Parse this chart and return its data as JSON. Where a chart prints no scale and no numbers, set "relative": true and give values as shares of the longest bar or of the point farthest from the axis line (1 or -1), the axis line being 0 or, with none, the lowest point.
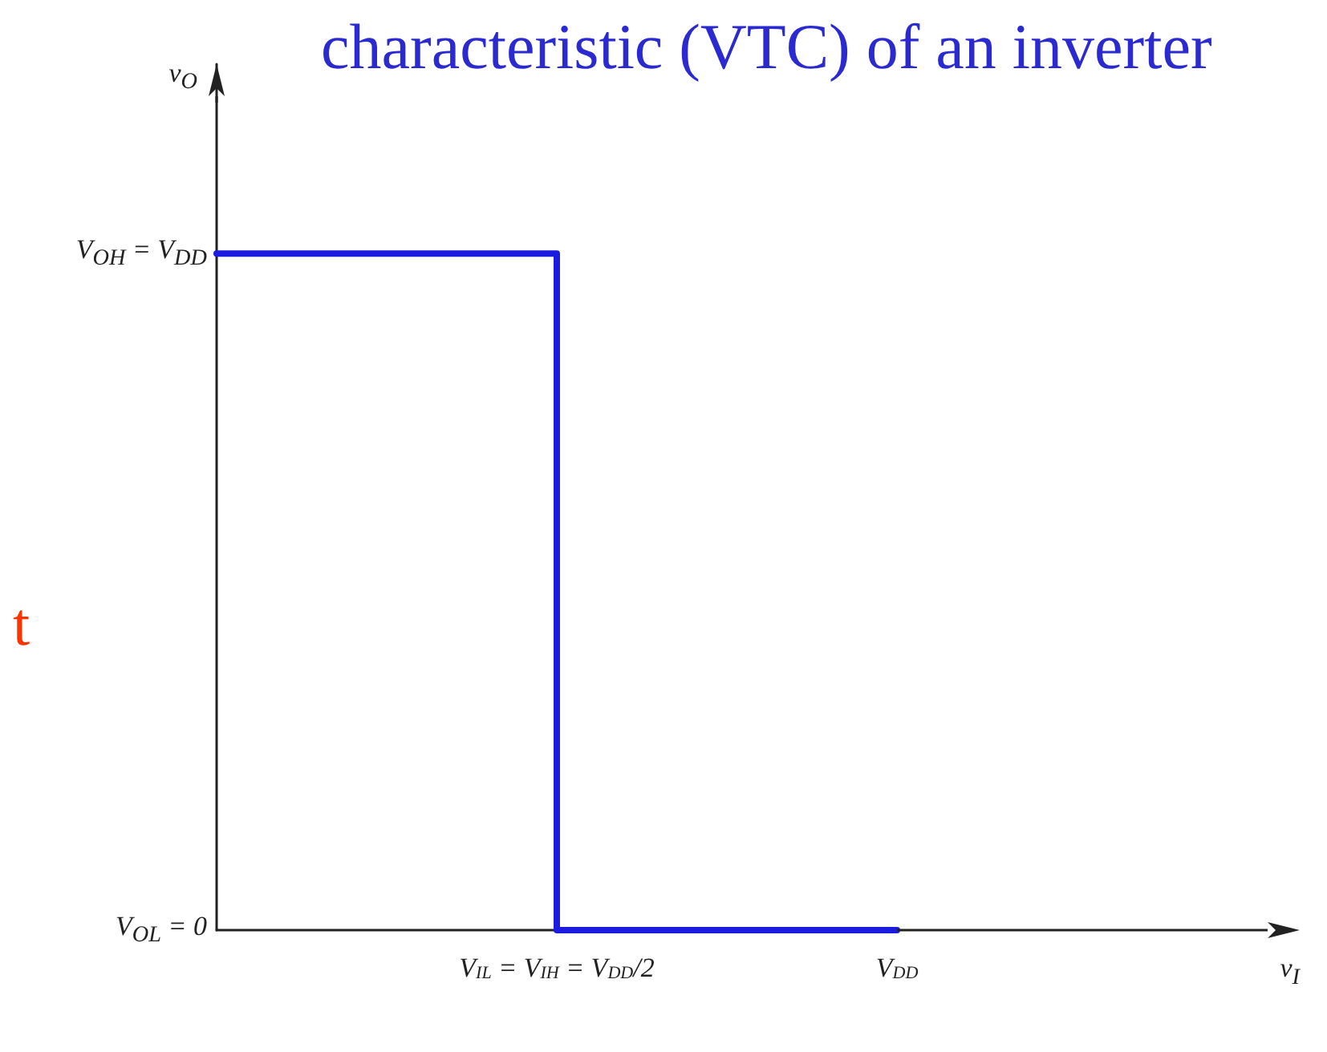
{
  "chart_data": {
    "type": "step",
    "relative": true,
    "title": "characteristic (VTC) of an inverter",
    "categories": [
      null,
      "V$_{IL}$ = V$_{IH}$ = V$_{DD}$/2",
      "V$_{DD}$"
    ],
    "series": [
      {
        "color": "#1c1ce0",
        "values": [
          1,
          0,
          0
        ]
      }
    ],
    "annotations": [
      "v$_{O}$",
      "V$_{OH}$ = V$_{DD}$",
      "V$_{OL}$ = 0",
      "v$_{I}$",
      "t"
    ],
    "marker": "none",
    "line_style": "solid"
  }
}
